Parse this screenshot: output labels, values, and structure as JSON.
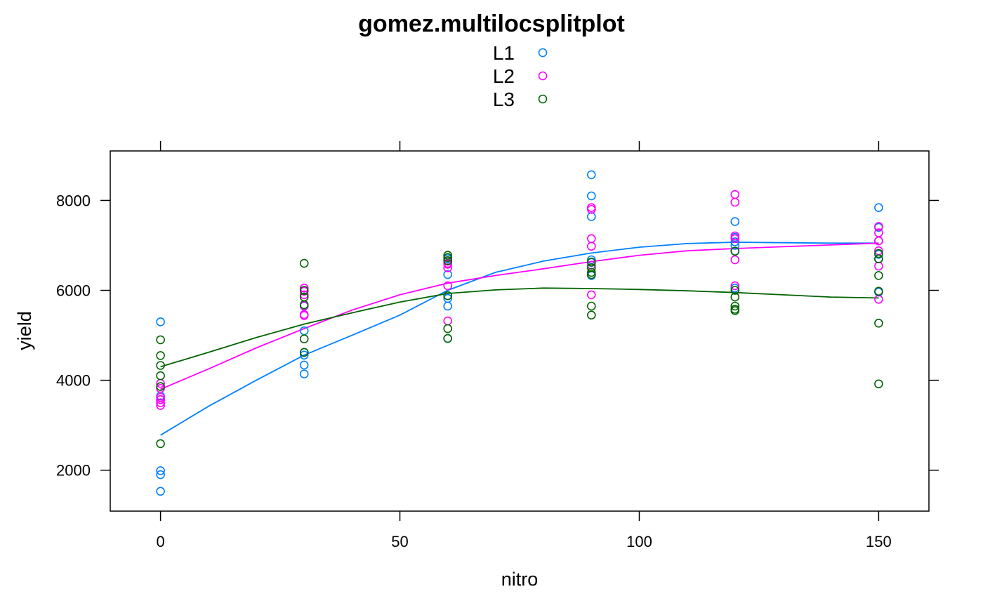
{
  "chart_data": {
    "type": "scatter",
    "title": "gomez.multilocsplitplot",
    "xlabel": "nitro",
    "ylabel": "yield",
    "xlim": [
      -10.5,
      160.5
    ],
    "ylim": [
      1090,
      9100
    ],
    "x_ticks": [
      0,
      50,
      100,
      150
    ],
    "y_ticks": [
      2000,
      4000,
      6000,
      8000
    ],
    "x_tick_labels": [
      "0",
      "50",
      "100",
      "150"
    ],
    "y_tick_labels": [
      "2000",
      "4000",
      "6000",
      "8000"
    ],
    "legend_position": "top",
    "series": [
      {
        "name": "L1",
        "color": "#0080ff",
        "points": [
          [
            0,
            5300
          ],
          [
            0,
            3650
          ],
          [
            0,
            3570
          ],
          [
            0,
            1990
          ],
          [
            0,
            1900
          ],
          [
            0,
            1530
          ],
          [
            30,
            5100
          ],
          [
            30,
            4620
          ],
          [
            30,
            4560
          ],
          [
            30,
            4340
          ],
          [
            30,
            4140
          ],
          [
            30,
            5650
          ],
          [
            60,
            6350
          ],
          [
            60,
            5650
          ],
          [
            60,
            5820
          ],
          [
            60,
            4930
          ],
          [
            60,
            6700
          ],
          [
            60,
            5880
          ],
          [
            90,
            8570
          ],
          [
            90,
            8100
          ],
          [
            90,
            7640
          ],
          [
            90,
            6680
          ],
          [
            90,
            6330
          ],
          [
            90,
            6620
          ],
          [
            120,
            7530
          ],
          [
            120,
            7080
          ],
          [
            120,
            7180
          ],
          [
            120,
            6050
          ],
          [
            120,
            7000
          ],
          [
            120,
            6870
          ],
          [
            150,
            7840
          ],
          [
            150,
            7400
          ],
          [
            150,
            6800
          ],
          [
            150,
            5960
          ],
          [
            150,
            6700
          ],
          [
            150,
            7100
          ]
        ],
        "smooth": [
          [
            0,
            2780
          ],
          [
            10,
            3420
          ],
          [
            20,
            4000
          ],
          [
            30,
            4560
          ],
          [
            40,
            5000
          ],
          [
            50,
            5450
          ],
          [
            60,
            6000
          ],
          [
            70,
            6400
          ],
          [
            80,
            6650
          ],
          [
            90,
            6830
          ],
          [
            100,
            6960
          ],
          [
            110,
            7040
          ],
          [
            120,
            7070
          ],
          [
            130,
            7060
          ],
          [
            140,
            7050
          ],
          [
            150,
            7050
          ]
        ]
      },
      {
        "name": "L2",
        "color": "#ff00ff",
        "points": [
          [
            0,
            3930
          ],
          [
            0,
            3820
          ],
          [
            0,
            3620
          ],
          [
            0,
            3570
          ],
          [
            0,
            3500
          ],
          [
            0,
            3440
          ],
          [
            30,
            6050
          ],
          [
            30,
            5980
          ],
          [
            30,
            5900
          ],
          [
            30,
            5460
          ],
          [
            30,
            5440
          ],
          [
            30,
            5660
          ],
          [
            60,
            6650
          ],
          [
            60,
            6600
          ],
          [
            60,
            6500
          ],
          [
            60,
            6100
          ],
          [
            60,
            5320
          ],
          [
            60,
            6580
          ],
          [
            90,
            7840
          ],
          [
            90,
            7800
          ],
          [
            90,
            7150
          ],
          [
            90,
            6980
          ],
          [
            90,
            5900
          ],
          [
            90,
            6560
          ],
          [
            120,
            8130
          ],
          [
            120,
            7960
          ],
          [
            120,
            7210
          ],
          [
            120,
            7150
          ],
          [
            120,
            6680
          ],
          [
            120,
            6100
          ],
          [
            150,
            7420
          ],
          [
            150,
            7280
          ],
          [
            150,
            7100
          ],
          [
            150,
            6540
          ],
          [
            150,
            5800
          ],
          [
            150,
            6880
          ]
        ],
        "smooth": [
          [
            0,
            3800
          ],
          [
            10,
            4250
          ],
          [
            20,
            4720
          ],
          [
            30,
            5150
          ],
          [
            40,
            5560
          ],
          [
            50,
            5900
          ],
          [
            60,
            6160
          ],
          [
            70,
            6330
          ],
          [
            80,
            6480
          ],
          [
            90,
            6640
          ],
          [
            100,
            6780
          ],
          [
            110,
            6880
          ],
          [
            120,
            6930
          ],
          [
            130,
            6970
          ],
          [
            140,
            7010
          ],
          [
            150,
            7050
          ]
        ]
      },
      {
        "name": "L3",
        "color": "#006400",
        "points": [
          [
            0,
            4900
          ],
          [
            0,
            4550
          ],
          [
            0,
            4330
          ],
          [
            0,
            4100
          ],
          [
            0,
            3860
          ],
          [
            0,
            2590
          ],
          [
            30,
            6600
          ],
          [
            30,
            6000
          ],
          [
            30,
            5850
          ],
          [
            30,
            5680
          ],
          [
            30,
            4920
          ],
          [
            30,
            4620
          ],
          [
            60,
            6780
          ],
          [
            60,
            6730
          ],
          [
            60,
            6660
          ],
          [
            60,
            5880
          ],
          [
            60,
            5150
          ],
          [
            60,
            4930
          ],
          [
            90,
            6630
          ],
          [
            90,
            6500
          ],
          [
            90,
            6350
          ],
          [
            90,
            5650
          ],
          [
            90,
            5450
          ],
          [
            90,
            6400
          ],
          [
            120,
            6870
          ],
          [
            120,
            6000
          ],
          [
            120,
            5850
          ],
          [
            120,
            5650
          ],
          [
            120,
            5580
          ],
          [
            120,
            5550
          ],
          [
            150,
            6820
          ],
          [
            150,
            6700
          ],
          [
            150,
            6330
          ],
          [
            150,
            5980
          ],
          [
            150,
            5270
          ],
          [
            150,
            3920
          ]
        ],
        "smooth": [
          [
            0,
            4300
          ],
          [
            10,
            4620
          ],
          [
            20,
            4950
          ],
          [
            30,
            5250
          ],
          [
            40,
            5500
          ],
          [
            50,
            5740
          ],
          [
            60,
            5930
          ],
          [
            70,
            6010
          ],
          [
            80,
            6050
          ],
          [
            90,
            6040
          ],
          [
            100,
            6020
          ],
          [
            110,
            5990
          ],
          [
            120,
            5950
          ],
          [
            130,
            5900
          ],
          [
            140,
            5850
          ],
          [
            150,
            5830
          ]
        ]
      }
    ]
  }
}
